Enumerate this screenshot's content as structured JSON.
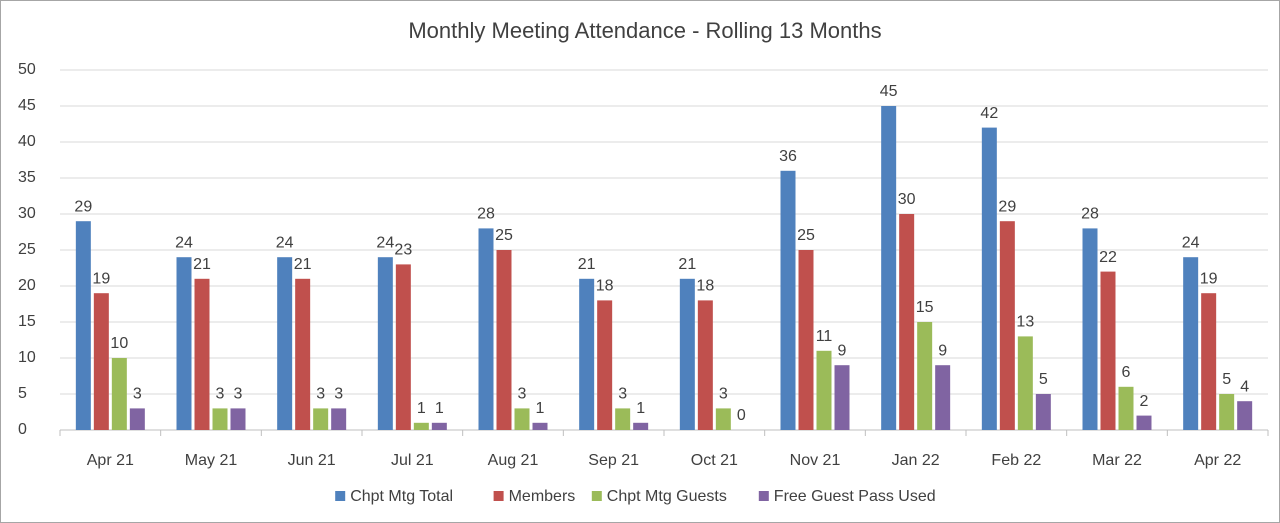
{
  "chart_data": {
    "type": "bar",
    "title": "Monthly Meeting Attendance - Rolling 13 Months",
    "categories": [
      "Apr 21",
      "May 21",
      "Jun 21",
      "Jul 21",
      "Aug 21",
      "Sep 21",
      "Oct 21",
      "Nov 21",
      "Jan 22",
      "Feb 22",
      "Mar 22",
      "Apr 22"
    ],
    "series": [
      {
        "name": "Chpt Mtg Total",
        "color": "#4f81bd",
        "values": [
          29,
          24,
          24,
          24,
          28,
          21,
          21,
          36,
          45,
          42,
          28,
          24
        ]
      },
      {
        "name": "Members",
        "color": "#c0504d",
        "values": [
          19,
          21,
          21,
          23,
          25,
          18,
          18,
          25,
          30,
          29,
          22,
          19
        ]
      },
      {
        "name": "Chpt Mtg Guests",
        "color": "#9bbb59",
        "values": [
          10,
          3,
          3,
          1,
          3,
          3,
          3,
          11,
          15,
          13,
          6,
          5
        ]
      },
      {
        "name": "Free Guest Pass Used",
        "color": "#8064a2",
        "values": [
          3,
          3,
          3,
          1,
          1,
          1,
          0,
          9,
          9,
          5,
          2,
          4
        ]
      }
    ],
    "ylim": [
      0,
      50
    ],
    "yticks": [
      0,
      5,
      10,
      15,
      20,
      25,
      30,
      35,
      40,
      45,
      50
    ],
    "grid": true,
    "legend": "bottom"
  }
}
